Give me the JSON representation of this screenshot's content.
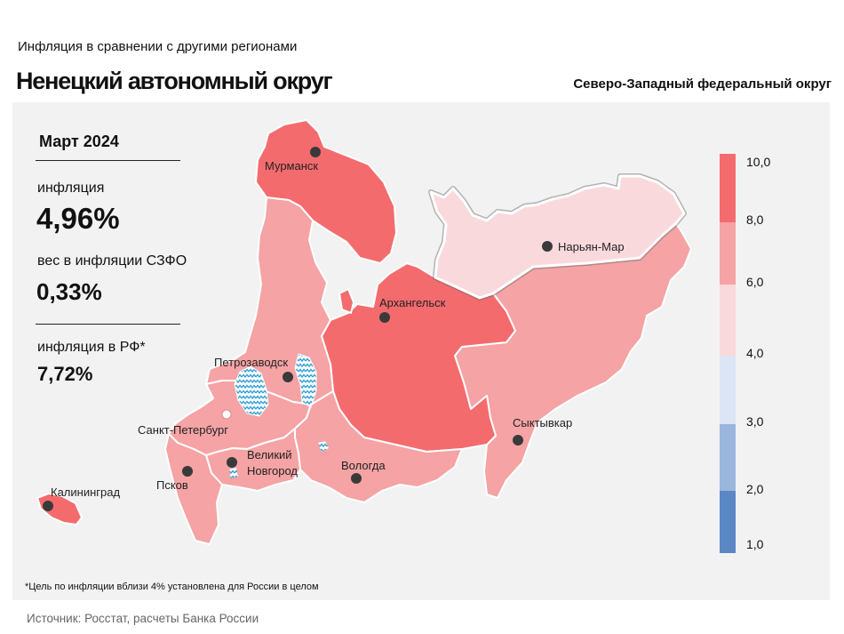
{
  "header": {
    "supertitle": "Инфляция  в сравнении  с другими  регионами",
    "title": "Ненецкий автономный округ",
    "district": "Северо-Западный федеральный округ"
  },
  "stats": {
    "month": "Март 2024",
    "inflation_label": "инфляция",
    "inflation_value": "4,96%",
    "weight_label": "вес в инфляции  СЗФО",
    "weight_value": "0,33%",
    "russia_label": "инфляция  в РФ*",
    "russia_value": "7,72%"
  },
  "footnote": "*Цель по инфляции вблизи 4% установлена для России в целом",
  "source": "Источник: Росстат, расчеты Банка России",
  "colors": {
    "c8_10": "#f46b6e",
    "c6_8": "#f5a3a4",
    "c4_6": "#f9d9dc",
    "c3_4": "#dce5f5",
    "c2_3": "#9bb6dc",
    "c1_2": "#5b87c5",
    "lake": "#2e9fd8",
    "highlight_border": "#555555"
  },
  "legend": {
    "ticks": [
      "10,0",
      "8,0",
      "6,0",
      "4,0",
      "3,0",
      "2,0",
      "1,0"
    ],
    "bins": [
      {
        "range": "8,0–10,0",
        "color": "#f46b6e"
      },
      {
        "range": "6,0–8,0",
        "color": "#f5a3a4"
      },
      {
        "range": "4,0–6,0",
        "color": "#f9d9dc"
      },
      {
        "range": "3,0–4,0",
        "color": "#dce5f5"
      },
      {
        "range": "2,0–3,0",
        "color": "#9bb6dc"
      },
      {
        "range": "1,0–2,0",
        "color": "#5b87c5"
      }
    ]
  },
  "map": {
    "regions": [
      {
        "name": "Мурманская область",
        "bin": "8,0–10,0"
      },
      {
        "name": "Республика Карелия",
        "bin": "6,0–8,0"
      },
      {
        "name": "Архангельская область",
        "bin": "8,0–10,0"
      },
      {
        "name": "Ненецкий автономный округ",
        "bin": "4,0–6,0",
        "highlighted": true
      },
      {
        "name": "Республика Коми",
        "bin": "6,0–8,0"
      },
      {
        "name": "Ленинградская область",
        "bin": "6,0–8,0"
      },
      {
        "name": "Новгородская область",
        "bin": "6,0–8,0"
      },
      {
        "name": "Псковская область",
        "bin": "6,0–8,0"
      },
      {
        "name": "Вологодская область",
        "bin": "6,0–8,0"
      },
      {
        "name": "Калининградская область",
        "bin": "8,0–10,0"
      }
    ],
    "cities": [
      {
        "name": "Мурманск"
      },
      {
        "name": "Нарьян-Мар"
      },
      {
        "name": "Архангельск"
      },
      {
        "name": "Петрозаводск"
      },
      {
        "name": "Сыктывкар"
      },
      {
        "name": "Санкт-Петербург"
      },
      {
        "name": "Великий"
      },
      {
        "name": "Новгород"
      },
      {
        "name": "Вологда"
      },
      {
        "name": "Псков"
      },
      {
        "name": "Калининград"
      }
    ]
  }
}
